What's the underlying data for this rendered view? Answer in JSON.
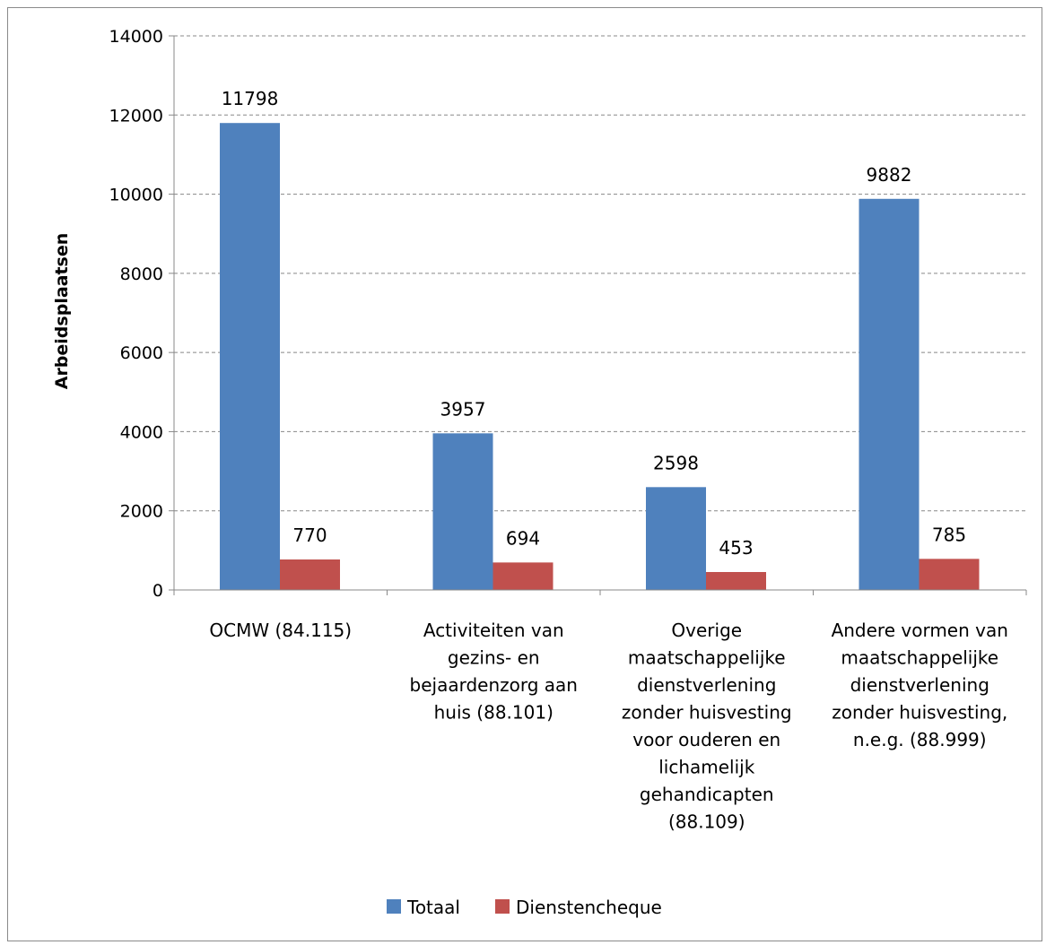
{
  "chart_data": {
    "type": "bar",
    "categories": [
      [
        "OCMW (84.115)"
      ],
      [
        "Activiteiten van",
        "gezins- en",
        "bejaardenzorg aan",
        "huis (88.101)"
      ],
      [
        "Overige",
        "maatschappelijke",
        "dienstverlening",
        "zonder huisvesting",
        "voor ouderen en",
        "lichamelijk",
        "gehandicapten",
        "(88.109)"
      ],
      [
        "Andere vormen van",
        "maatschappelijke",
        "dienstverlening",
        "zonder huisvesting,",
        "n.e.g. (88.999)"
      ]
    ],
    "series": [
      {
        "name": "Totaal",
        "values": [
          11798,
          3957,
          2598,
          9882
        ],
        "color": "#4F81BD"
      },
      {
        "name": "Dienstencheque",
        "values": [
          770,
          694,
          453,
          785
        ],
        "color": "#C0504D"
      }
    ],
    "ylabel": "Arbeidsplaatsen",
    "ylim": [
      0,
      14000
    ],
    "yticks": [
      0,
      2000,
      4000,
      6000,
      8000,
      10000,
      12000,
      14000
    ],
    "grid": true,
    "legend": "bottom"
  }
}
